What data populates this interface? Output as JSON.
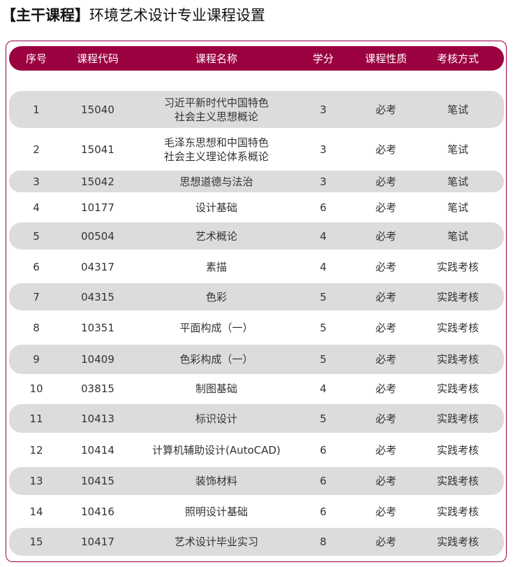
{
  "title": {
    "bracket_label": "【主干课程】",
    "text": "环境艺术设计专业课程设置"
  },
  "colors": {
    "accent": "#9b0040",
    "row_stripe": "#dcdcdc"
  },
  "table": {
    "headers": [
      "序号",
      "课程代码",
      "课程名称",
      "学分",
      "课程性质",
      "考核方式"
    ],
    "rows": [
      [
        "1",
        "15040",
        "习近平新时代中国特色\n社会主义思想概论",
        "3",
        "必考",
        "笔试"
      ],
      [
        "2",
        "15041",
        "毛泽东思想和中国特色\n社会主义理论体系概论",
        "3",
        "必考",
        "笔试"
      ],
      [
        "3",
        "15042",
        "思想道德与法治",
        "3",
        "必考",
        "笔试"
      ],
      [
        "4",
        "10177",
        "设计基础",
        "6",
        "必考",
        "笔试"
      ],
      [
        "5",
        "00504",
        "艺术概论",
        "4",
        "必考",
        "笔试"
      ],
      [
        "6",
        "04317",
        "素描",
        "4",
        "必考",
        "实践考核"
      ],
      [
        "7",
        "04315",
        "色彩",
        "5",
        "必考",
        "实践考核"
      ],
      [
        "8",
        "10351",
        "平面构成（一）",
        "5",
        "必考",
        "实践考核"
      ],
      [
        "9",
        "10409",
        "色彩构成（一）",
        "5",
        "必考",
        "实践考核"
      ],
      [
        "10",
        "03815",
        "制图基础",
        "4",
        "必考",
        "实践考核"
      ],
      [
        "11",
        "10413",
        "标识设计",
        "5",
        "必考",
        "实践考核"
      ],
      [
        "12",
        "10414",
        "计算机辅助设计(AutoCAD)",
        "6",
        "必考",
        "实践考核"
      ],
      [
        "13",
        "10415",
        "装饰材料",
        "6",
        "必考",
        "实践考核"
      ],
      [
        "14",
        "10416",
        "照明设计基础",
        "6",
        "必考",
        "实践考核"
      ],
      [
        "15",
        "10417",
        "艺术设计毕业实习",
        "8",
        "必考",
        "实践考核"
      ]
    ]
  }
}
